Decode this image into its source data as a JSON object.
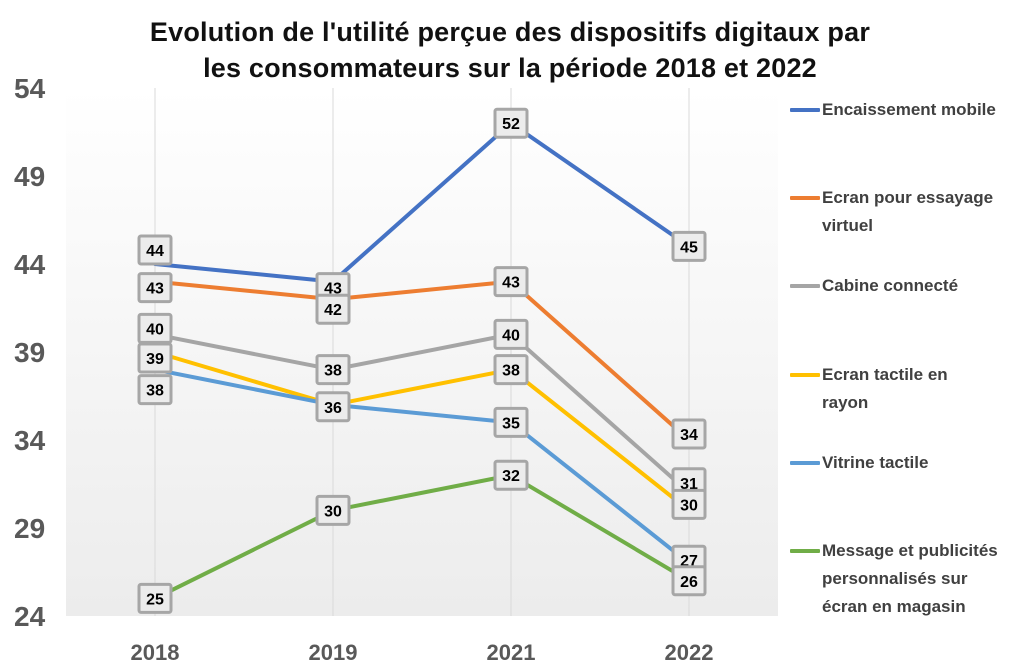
{
  "chart_data": {
    "type": "line",
    "title": [
      "Evolution de l'utilité perçue des dispositifs digitaux par",
      "les consommateurs sur la période 2018 et  2022"
    ],
    "categories": [
      "2018",
      "2019",
      "2021",
      "2022"
    ],
    "y_ticks": [
      "54",
      "49",
      "44",
      "39",
      "34",
      "29",
      "24"
    ],
    "ylim": [
      24,
      54
    ],
    "grid": "vertical",
    "legend_position": "right",
    "series": [
      {
        "name": "Encaissement mobile",
        "color": "#4472c4",
        "values": [
          44,
          43,
          52,
          45
        ],
        "labels": [
          "44",
          "43",
          "52",
          "45"
        ]
      },
      {
        "name": "Ecran pour essayage virtuel",
        "color": "#ed7d31",
        "values": [
          43,
          42,
          43,
          34
        ],
        "labels": [
          "43",
          "42",
          "43",
          "34"
        ]
      },
      {
        "name": "Cabine connecté",
        "color": "#a5a5a5",
        "values": [
          40,
          38,
          40,
          31
        ],
        "labels": [
          "40",
          "38",
          "40",
          "31"
        ]
      },
      {
        "name": "Ecran tactile en rayon",
        "color": "#ffc000",
        "values": [
          39,
          36,
          38,
          30
        ],
        "labels": [
          "39",
          "",
          "38",
          "30"
        ]
      },
      {
        "name": "Vitrine tactile",
        "color": "#5b9bd5",
        "values": [
          38,
          36,
          35,
          27
        ],
        "labels": [
          "38",
          "36",
          "35",
          "27"
        ]
      },
      {
        "name": "Message et publicités personnalisés sur écran en magasin",
        "color": "#70ad47",
        "values": [
          25,
          30,
          32,
          26
        ],
        "labels": [
          "25",
          "30",
          "32",
          "26"
        ]
      }
    ]
  },
  "legend_lines": [
    [
      "Encaissement mobile"
    ],
    [
      "Ecran pour essayage",
      "virtuel"
    ],
    [
      "Cabine connecté"
    ],
    [
      "Ecran tactile en",
      "rayon"
    ],
    [
      "Vitrine tactile"
    ],
    [
      "Message et publicités",
      "personnalisés sur",
      "écran en magasin"
    ]
  ]
}
